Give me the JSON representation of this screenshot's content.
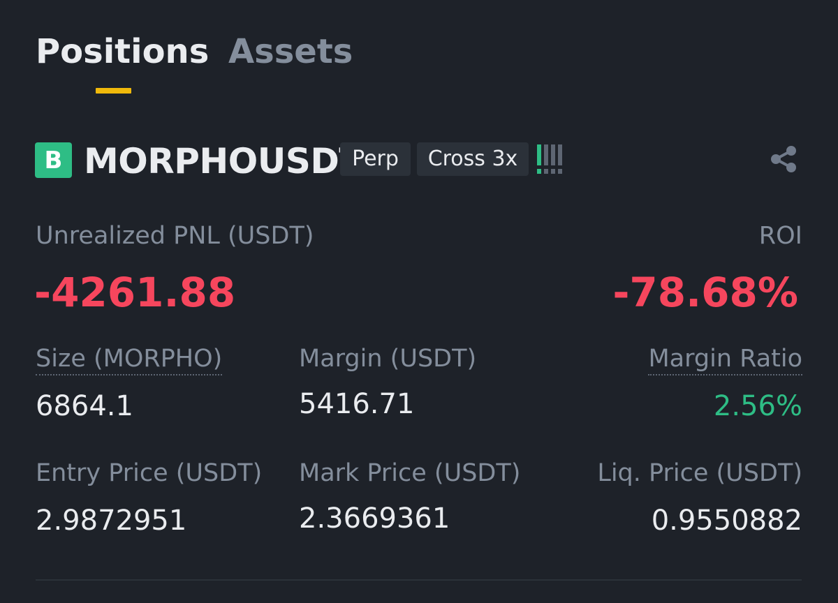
{
  "tabs": {
    "positions": "Positions",
    "assets": "Assets",
    "active": "Positions"
  },
  "position": {
    "badge": "B",
    "symbol": "MORPHOUSDT",
    "contract_type": "Perp",
    "margin_mode": "Cross 3x",
    "risk_indicator": {
      "active_bars": 1,
      "total_bars": 4
    },
    "unrealized_pnl_label": "Unrealized PNL (USDT)",
    "unrealized_pnl": "-4261.88",
    "roi_label": "ROI",
    "roi": "-78.68%",
    "size_label": "Size (MORPHO)",
    "size": "6864.1",
    "margin_label": "Margin (USDT)",
    "margin": "5416.71",
    "margin_ratio_label": "Margin Ratio",
    "margin_ratio": "2.56%",
    "entry_price_label": "Entry Price (USDT)",
    "entry_price": "2.9872951",
    "mark_price_label": "Mark Price (USDT)",
    "mark_price": "2.3669361",
    "liq_price_label": "Liq. Price (USDT)",
    "liq_price": "0.9550882"
  },
  "colors": {
    "background": "#1e2229",
    "accent_yellow": "#f0b90b",
    "negative_red": "#f6465d",
    "positive_green": "#2ebd85",
    "muted_text": "#848e9c"
  },
  "icons": {
    "share": "share-icon",
    "risk": "risk-exclamation-icon"
  }
}
